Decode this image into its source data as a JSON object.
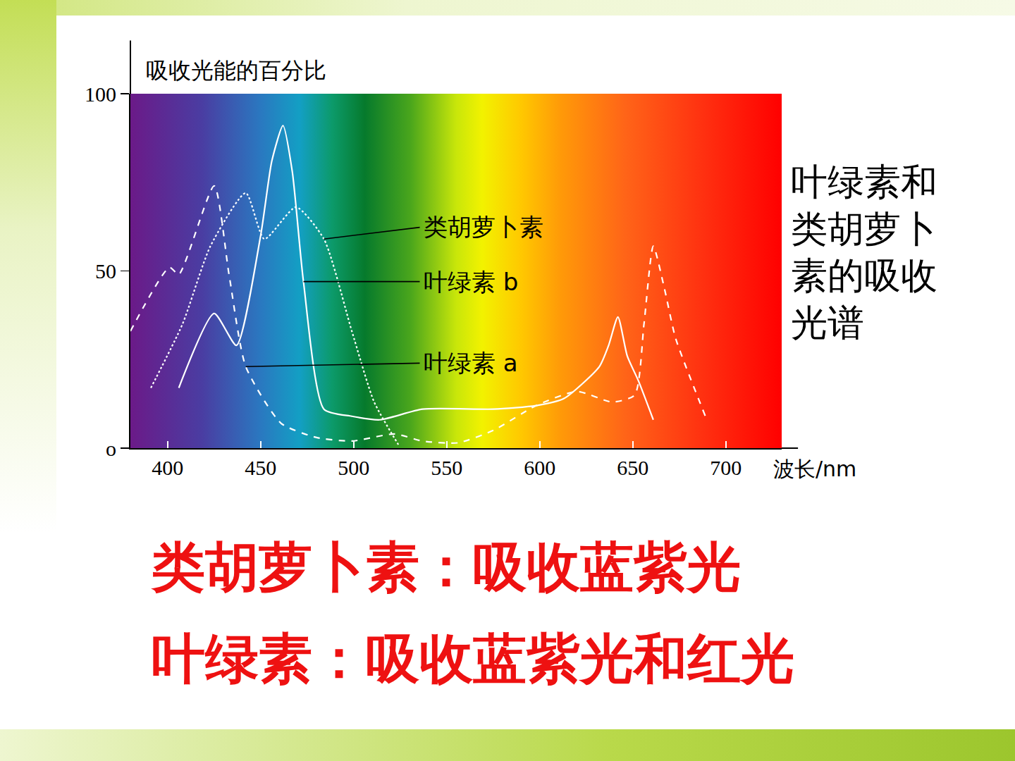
{
  "chart_data": {
    "type": "line",
    "title": "叶绿素和类胡萝卜素的吸收光谱",
    "x_label": "波长/nm",
    "y_label": "吸收光能的百分比",
    "xlim": [
      380,
      730
    ],
    "ylim": [
      0,
      100
    ],
    "xticks": [
      400,
      450,
      500,
      550,
      600,
      650,
      700
    ],
    "yticks": [
      {
        "value": 0,
        "label": "o"
      },
      50,
      100
    ],
    "grid": false,
    "series": [
      {
        "name": "类胡萝卜素",
        "color": "#ffffff",
        "line_style": "dotted",
        "x": [
          391,
          408,
          423,
          442,
          452,
          469,
          484,
          499,
          511,
          524
        ],
        "values": [
          17,
          35,
          57,
          72,
          59,
          68,
          59,
          33,
          13,
          1
        ]
      },
      {
        "name": "叶绿素 b",
        "color": "#ffffff",
        "line_style": "solid",
        "x": [
          406,
          425,
          437,
          450,
          456,
          462,
          467,
          473,
          484,
          499,
          514,
          537,
          575,
          598,
          613,
          632,
          637,
          642,
          647,
          653,
          661
        ],
        "values": [
          17,
          38,
          29,
          60,
          81,
          91,
          78,
          47,
          11,
          9,
          8,
          11,
          11,
          12,
          14,
          23,
          29,
          37,
          26,
          19,
          8
        ]
      },
      {
        "name": "叶绿素 a",
        "color": "#ffffff",
        "line_style": "dashed",
        "x": [
          380,
          401,
          406,
          425,
          433,
          442,
          461,
          480,
          499,
          522,
          537,
          556,
          575,
          598,
          620,
          639,
          651,
          656,
          661,
          667,
          673,
          689
        ],
        "values": [
          33,
          51,
          49,
          74,
          49,
          23,
          7,
          3,
          2,
          4,
          2,
          1.5,
          5,
          12,
          16,
          13,
          15,
          35,
          57,
          45,
          31,
          9
        ]
      }
    ]
  },
  "slide": {
    "notes": [
      "类胡萝卜素：吸收蓝紫光",
      "叶绿素：吸收蓝紫光和红光"
    ]
  }
}
